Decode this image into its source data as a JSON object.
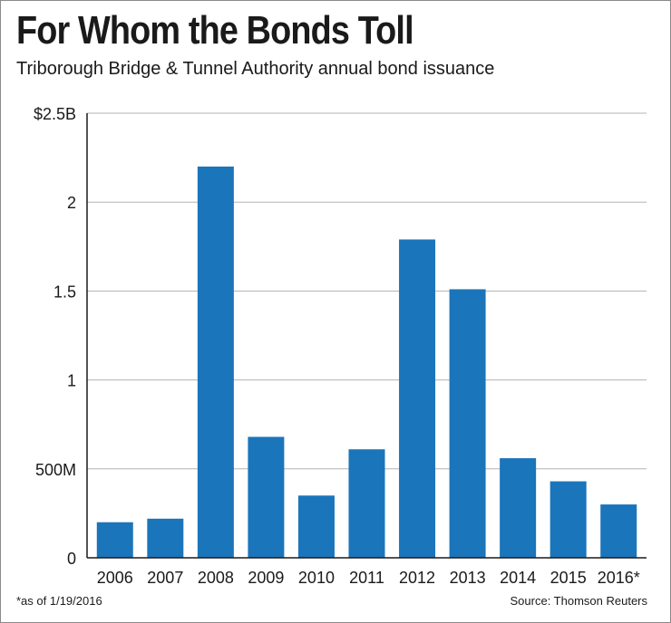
{
  "header": {
    "title": "For Whom the Bonds Toll",
    "subtitle": "Triborough Bridge & Tunnel Authority annual bond issuance"
  },
  "footer": {
    "footnote": "*as of 1/19/2016",
    "source": "Source: Thomson Reuters"
  },
  "colors": {
    "bar": "#1a75bb",
    "grid": "#b3b3b3",
    "axis": "#1a1a1a"
  },
  "chart_data": {
    "type": "bar",
    "title": "For Whom the Bonds Toll",
    "subtitle": "Triborough Bridge & Tunnel Authority annual bond issuance",
    "xlabel": "",
    "ylabel": "",
    "categories": [
      "2006",
      "2007",
      "2008",
      "2009",
      "2010",
      "2011",
      "2012",
      "2013",
      "2014",
      "2015",
      "2016*"
    ],
    "values": [
      0.2,
      0.22,
      2.2,
      0.68,
      0.35,
      0.61,
      1.79,
      1.51,
      0.56,
      0.43,
      0.3
    ],
    "ylim": [
      0,
      2.5
    ],
    "yticks": [
      0,
      0.5,
      1,
      1.5,
      2,
      2.5
    ],
    "ytick_labels": [
      "0",
      "500M",
      "1",
      "1.5",
      "2",
      "$2.5B"
    ],
    "grid": true,
    "legend": "none"
  }
}
